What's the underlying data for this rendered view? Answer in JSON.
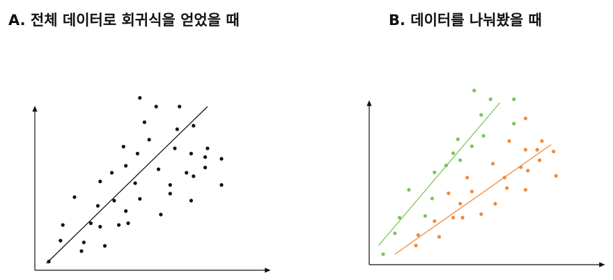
{
  "chart_data": [
    {
      "type": "scatter",
      "title": "A. 전체 데이터로 회귀식을 얻었을 때",
      "xlim": [
        0,
        100
      ],
      "ylim": [
        0,
        100
      ],
      "series": [
        {
          "color": "#111111",
          "x": [
            6,
            11,
            12,
            17,
            20,
            21,
            24,
            27,
            28,
            28,
            30,
            33,
            34,
            36,
            38,
            39,
            39,
            40,
            43,
            44,
            45,
            45,
            47,
            49,
            52,
            53,
            54,
            58,
            58,
            60,
            61,
            62,
            65,
            67,
            67,
            68,
            68,
            73,
            73,
            74,
            80,
            80
          ],
          "y": [
            5,
            17,
            26,
            42,
            11,
            16,
            27,
            37,
            25,
            51,
            14,
            56,
            40,
            26,
            71,
            60,
            34,
            27,
            50,
            67,
            99,
            41,
            85,
            75,
            94,
            58,
            32,
            44,
            49,
            70,
            81,
            94,
            56,
            40,
            67,
            83,
            54,
            65,
            59,
            70,
            64,
            49
          ],
          "fit": {
            "x": [
              5,
              74
            ],
            "y": [
              4,
              94
            ]
          }
        }
      ]
    },
    {
      "type": "scatter",
      "title": "B. 데이터를 나눠봤을 때",
      "xlim": [
        0,
        100
      ],
      "ylim": [
        0,
        100
      ],
      "series": [
        {
          "color": "#7cc35a",
          "x": [
            6,
            11,
            13,
            17,
            24,
            27,
            28,
            33,
            36,
            38,
            39,
            44,
            45,
            48,
            49,
            52,
            62,
            62
          ],
          "y": [
            6,
            18,
            27,
            43,
            28,
            38,
            53,
            57,
            64,
            72,
            60,
            68,
            100,
            86,
            74,
            95,
            95,
            81
          ],
          "fit": {
            "x": [
              4,
              56
            ],
            "y": [
              11,
              93
            ]
          }
        },
        {
          "color": "#f08a3c",
          "x": [
            20,
            21,
            28,
            30,
            34,
            36,
            39,
            40,
            42,
            44,
            48,
            53,
            54,
            58,
            59,
            60,
            65,
            67,
            67,
            68,
            67,
            72,
            73,
            74,
            79,
            80
          ],
          "y": [
            11,
            17,
            25,
            16,
            41,
            27,
            35,
            27,
            50,
            42,
            29,
            58,
            35,
            50,
            44,
            71,
            56,
            66,
            43,
            54,
            84,
            66,
            60,
            71,
            65,
            51
          ],
          "fit": {
            "x": [
              11,
              78
            ],
            "y": [
              6,
              69
            ]
          }
        }
      ]
    }
  ]
}
